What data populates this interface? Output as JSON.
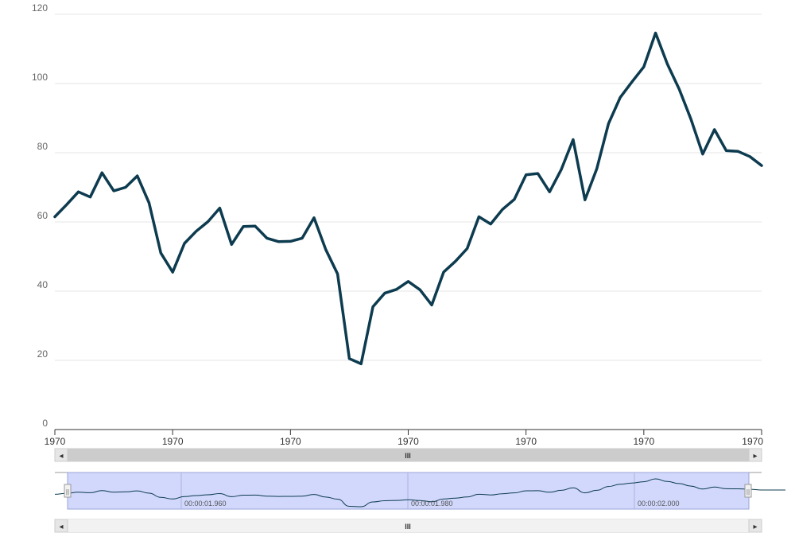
{
  "chart_data": {
    "type": "line",
    "title": "",
    "xlabel": "",
    "ylabel": "",
    "ylim": [
      0,
      120
    ],
    "y_ticks": [
      "0",
      "20",
      "40",
      "60",
      "80",
      "100",
      "120"
    ],
    "x_tick_labels": [
      "1970",
      "1970",
      "1970",
      "1970",
      "1970",
      "1970",
      "1970"
    ],
    "grid": "horizontal",
    "legend": "none",
    "series": [
      {
        "color": "#0d3b4f",
        "values": [
          61.5,
          65,
          68.7,
          67.2,
          74.2,
          69,
          70,
          73.3,
          65.5,
          51,
          45.5,
          53.8,
          57.3,
          60.1,
          64,
          53.5,
          58.7,
          58.8,
          55.3,
          54.3,
          54.4,
          55.3,
          61.2,
          52,
          45,
          20.5,
          19,
          35.5,
          39.4,
          40.5,
          42.8,
          40.4,
          36,
          45.5,
          48.6,
          52.3,
          61.5,
          59.4,
          63.6,
          66.5,
          73.6,
          74,
          68.7,
          75.2,
          83.8,
          66.4,
          75.3,
          88.4,
          96,
          100.5,
          104.8,
          114.6,
          105.6,
          98.4,
          89.7,
          79.6,
          86.7,
          80.6,
          80.4,
          78.9,
          76.3
        ]
      }
    ]
  },
  "scrollbar": {
    "grip": "III",
    "left_arrow": "◂",
    "right_arrow": "▸"
  },
  "navigator": {
    "time_labels": [
      "00:00:01.960",
      "00:00:01.980",
      "00:00:02.000"
    ],
    "handle_grip": "||"
  },
  "colors": {
    "line": "#0d3b4f",
    "grid": "#e6e6e6",
    "axis": "#333333",
    "navigator_mask": "#c9d1fb",
    "scrollbar_track": "#f2f2f2",
    "scrollbar_thumb": "#cccccc"
  }
}
